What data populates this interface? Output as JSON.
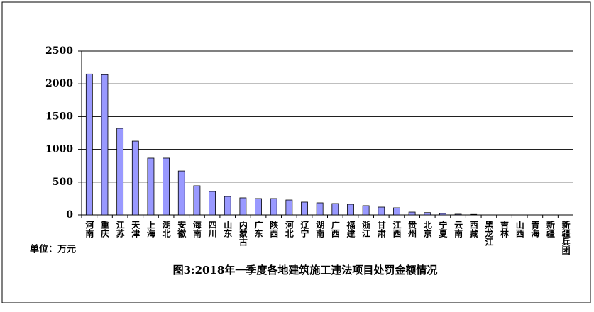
{
  "chart_data": {
    "type": "bar",
    "title": "图3:2018年一季度各地建筑施工违法项目处罚金额情况",
    "unit_label": "单位：万元",
    "categories": [
      "河南",
      "重庆",
      "江苏",
      "天津",
      "上海",
      "湖北",
      "安徽",
      "海南",
      "四川",
      "山东",
      "内蒙古",
      "广东",
      "陕西",
      "河北",
      "辽宁",
      "湖南",
      "广西",
      "福建",
      "浙江",
      "甘肃",
      "江西",
      "贵州",
      "北京",
      "宁夏",
      "云南",
      "西藏",
      "黑龙江",
      "吉林",
      "山西",
      "青海",
      "新疆",
      "新疆兵团"
    ],
    "values": [
      2150,
      2140,
      1320,
      1125,
      866,
      866,
      670,
      444,
      357,
      281,
      260,
      249,
      249,
      227,
      195,
      184,
      173,
      162,
      141,
      119,
      108,
      43,
      35,
      22,
      11,
      8,
      0,
      0,
      0,
      0,
      0,
      0
    ],
    "color": "#9999ff",
    "ylim": [
      0,
      2500
    ],
    "yticks": [
      0,
      500,
      1000,
      1500,
      2000,
      2500
    ],
    "grid": true
  }
}
